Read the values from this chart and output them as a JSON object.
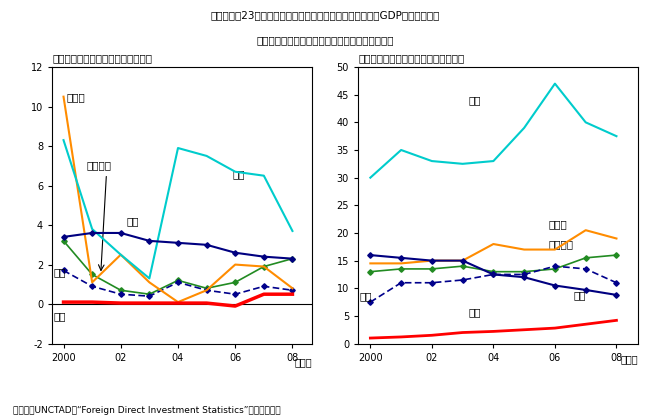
{
  "title_main": "第３－３－23図　対内直接投賄（フロー及びストック）のGDP比の国際比較",
  "title_sub": "我が国の対内直接投賄は低水準ながら増加の動き",
  "caption": "（備考）UNCTAD　“Foreign Direct Investment Statistics”により作成。",
  "panel1_title": "（％）（１）フローのグディーピ比",
  "panel2_title": "（％）（２）ストックのグディーピ比",
  "years": [
    2000,
    2001,
    2002,
    2003,
    2004,
    2005,
    2006,
    2007,
    2008
  ],
  "flow": {
    "UK": [
      8.3,
      3.8,
      2.5,
      1.3,
      7.9,
      7.5,
      6.7,
      6.5,
      3.7
    ],
    "Germany": [
      10.5,
      1.1,
      2.5,
      1.1,
      0.1,
      0.7,
      2.0,
      1.9,
      0.8
    ],
    "USA": [
      3.2,
      1.5,
      0.7,
      0.5,
      1.2,
      0.8,
      1.1,
      1.9,
      2.3
    ],
    "China": [
      3.4,
      3.6,
      3.6,
      3.2,
      3.1,
      3.0,
      2.6,
      2.4,
      2.3
    ],
    "Korea": [
      1.7,
      0.9,
      0.5,
      0.4,
      1.1,
      0.7,
      0.5,
      0.9,
      0.7
    ],
    "Japan": [
      0.1,
      0.1,
      0.05,
      0.05,
      0.05,
      0.05,
      -0.1,
      0.5,
      0.5
    ]
  },
  "stock": {
    "UK": [
      30.0,
      35.0,
      33.0,
      32.5,
      33.0,
      39.0,
      47.0,
      40.0,
      37.5
    ],
    "Germany": [
      14.5,
      14.5,
      15.0,
      15.0,
      18.0,
      17.0,
      17.0,
      20.5,
      19.0
    ],
    "USA": [
      13.0,
      13.5,
      13.5,
      14.0,
      13.0,
      13.0,
      13.5,
      15.5,
      16.0
    ],
    "China": [
      16.0,
      15.5,
      15.0,
      15.0,
      12.5,
      12.0,
      10.5,
      9.7,
      8.8
    ],
    "Korea": [
      7.5,
      11.0,
      11.0,
      11.5,
      12.5,
      12.5,
      14.0,
      13.5,
      11.0
    ],
    "Japan": [
      1.0,
      1.2,
      1.5,
      2.0,
      2.2,
      2.5,
      2.8,
      3.5,
      4.2
    ]
  },
  "col_UK": "#00CCCC",
  "col_Germany": "#FF8C00",
  "col_USA": "#228B22",
  "col_China": "#000080",
  "col_Korea": "#00008B",
  "col_Japan": "#FF0000",
  "flow_ylim": [
    -2,
    12
  ],
  "flow_yticks": [
    -2,
    0,
    2,
    4,
    6,
    8,
    10,
    12
  ],
  "stock_ylim": [
    0,
    50
  ],
  "stock_yticks": [
    0,
    5,
    10,
    15,
    20,
    25,
    30,
    35,
    40,
    45,
    50
  ],
  "xticks": [
    2000,
    2002,
    2004,
    2006,
    2008
  ],
  "xtick_labels": [
    "2000",
    "02",
    "04",
    "06",
    "08"
  ],
  "xlabel_suffix": "（年）",
  "label_UK": "英国",
  "label_Germany": "ドイツ",
  "label_USA": "アメリカ",
  "label_China": "中国",
  "label_Korea": "韓国",
  "label_Japan": "日本"
}
